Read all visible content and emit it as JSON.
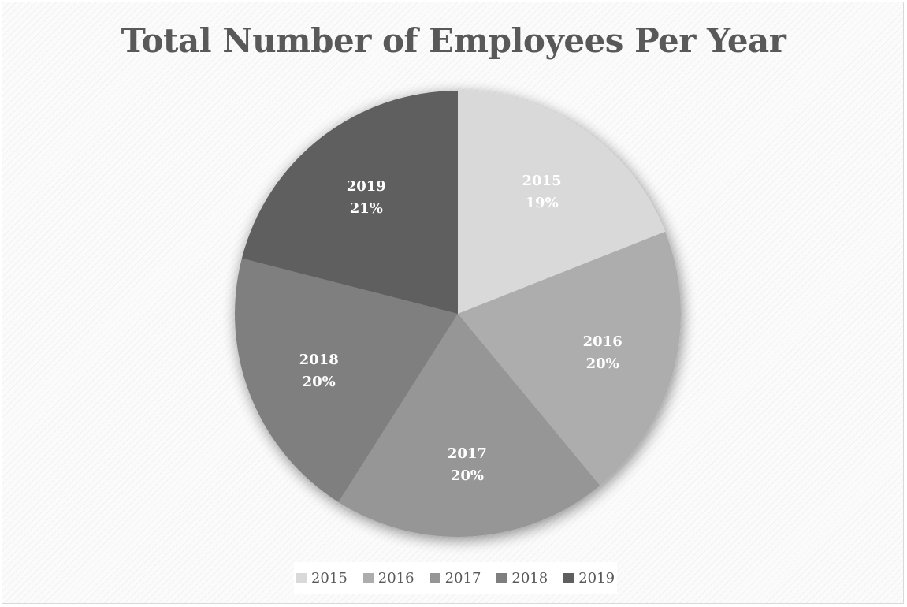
{
  "chart_data": {
    "type": "pie",
    "title": "Total Number of Employees Per Year",
    "categories": [
      "2015",
      "2016",
      "2017",
      "2018",
      "2019"
    ],
    "percent_labels": [
      "19%",
      "20%",
      "20%",
      "20%",
      "21%"
    ],
    "values": [
      19,
      20,
      20,
      20,
      21
    ],
    "colors": [
      "#d9d9d9",
      "#adadad",
      "#969696",
      "#7f7f7f",
      "#5f5f5f"
    ],
    "legend_position": "bottom",
    "data_labels": "category and percentage inside slices",
    "start": "12 o'clock",
    "direction": "clockwise"
  }
}
